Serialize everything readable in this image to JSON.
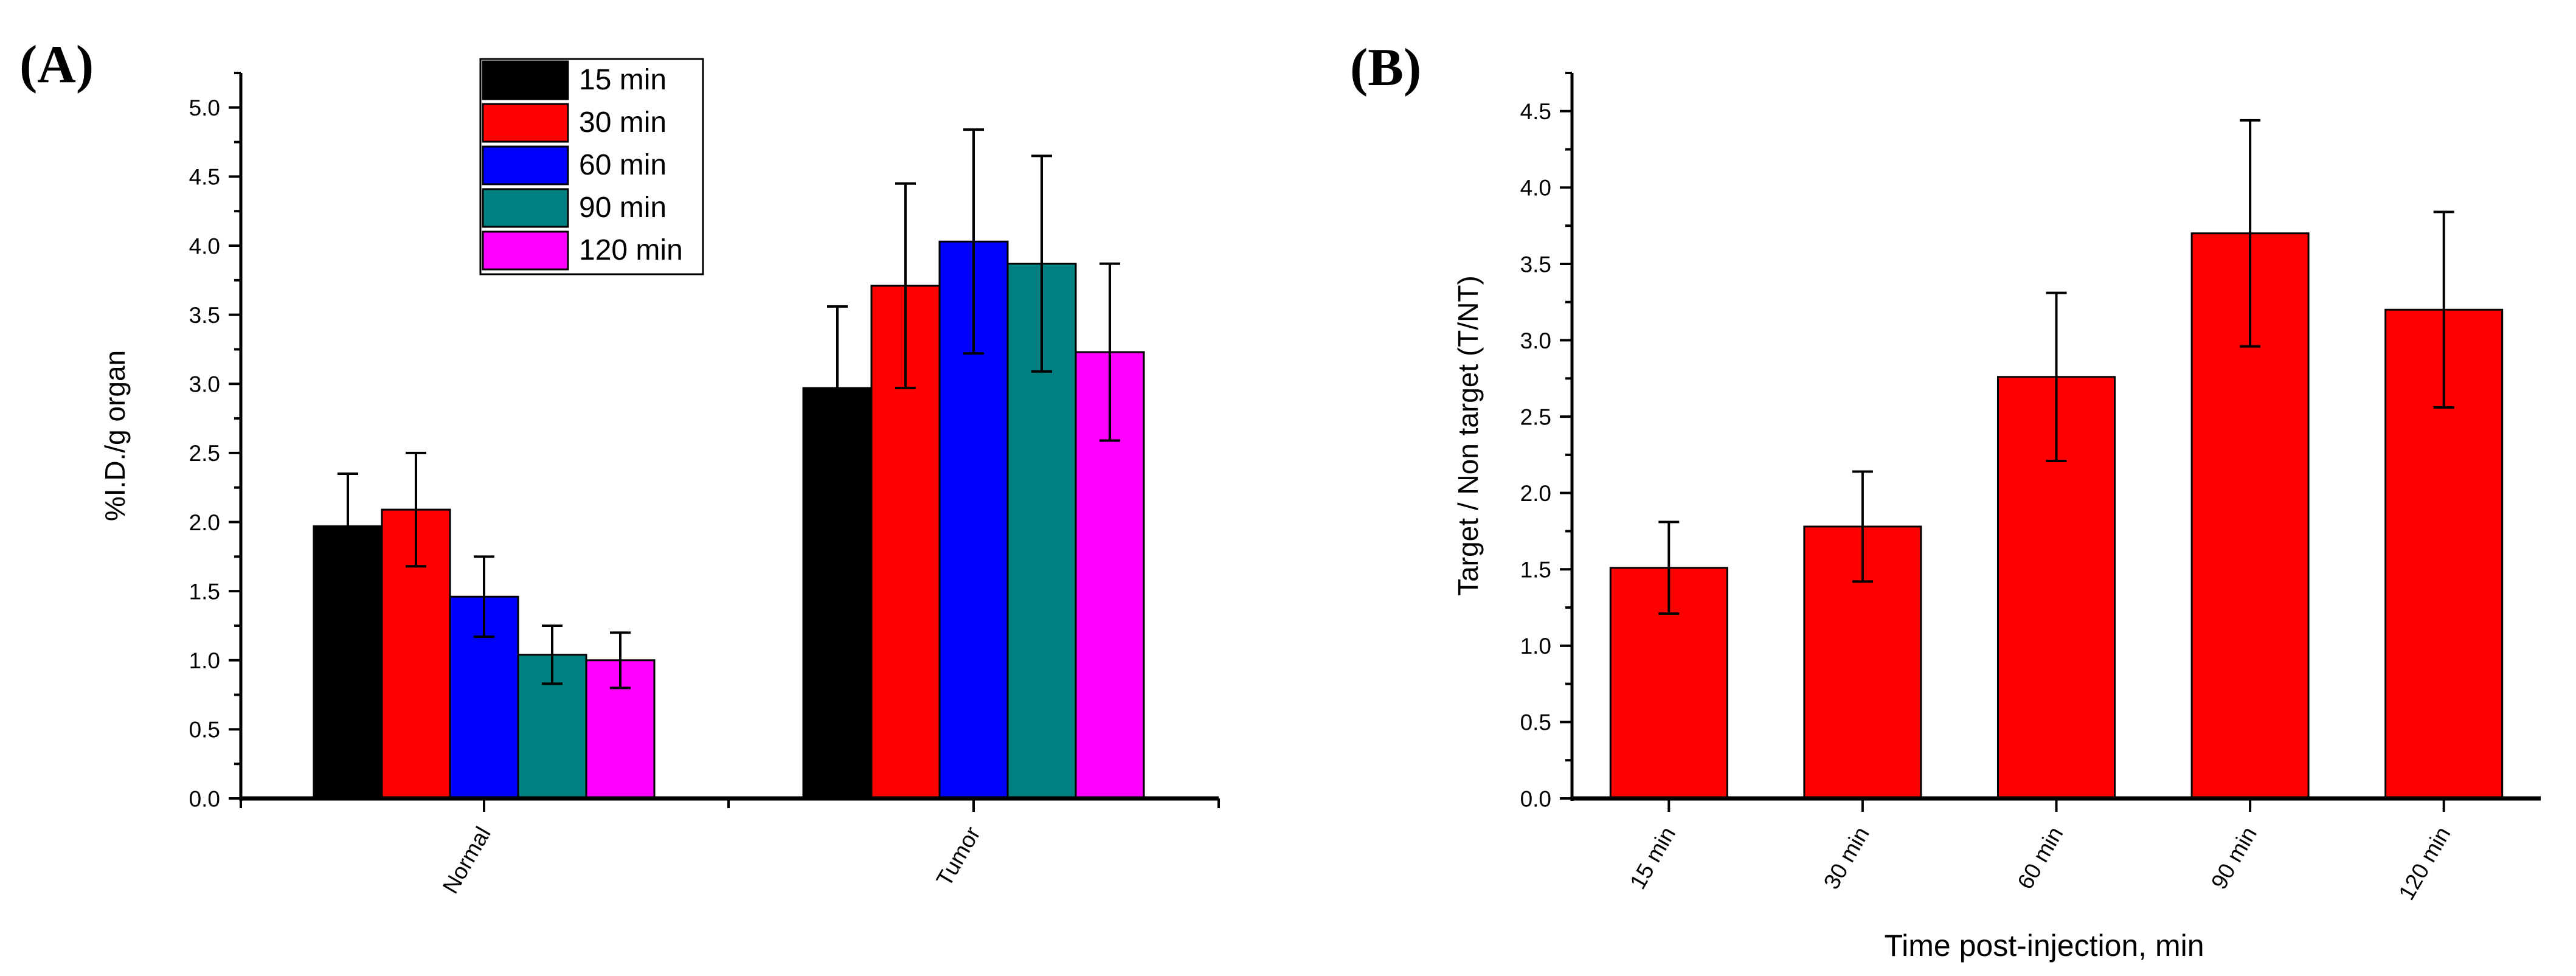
{
  "chart_data": [
    {
      "type": "bar",
      "panel_label": "(A)",
      "title": "",
      "xlabel": "",
      "ylabel": "%I.D./g organ",
      "ylim": [
        0,
        5.25
      ],
      "yticks": [
        "0.0",
        "0.5",
        "1.0",
        "1.5",
        "2.0",
        "2.5",
        "3.0",
        "3.5",
        "4.0",
        "4.5",
        "5.0"
      ],
      "categories": [
        "Normal",
        "Tumor"
      ],
      "legend_position": "top-center",
      "series": [
        {
          "name": "15 min",
          "color": "#000000",
          "values": [
            1.97,
            2.97
          ],
          "errors": [
            0.38,
            0.59
          ]
        },
        {
          "name": "30 min",
          "color": "#ff0000",
          "values": [
            2.09,
            3.71
          ],
          "errors": [
            0.41,
            0.74
          ]
        },
        {
          "name": "60 min",
          "color": "#0000ff",
          "values": [
            1.46,
            4.03
          ],
          "errors": [
            0.29,
            0.81
          ]
        },
        {
          "name": "90 min",
          "color": "#008080",
          "values": [
            1.04,
            3.87
          ],
          "errors": [
            0.21,
            0.78
          ]
        },
        {
          "name": "120 min",
          "color": "#ff00ff",
          "values": [
            1.0,
            3.23
          ],
          "errors": [
            0.2,
            0.64
          ]
        }
      ]
    },
    {
      "type": "bar",
      "panel_label": "(B)",
      "title": "",
      "xlabel": "Time post-injection, min",
      "ylabel": "Target / Non target (T/NT)",
      "ylim": [
        0,
        4.75
      ],
      "yticks": [
        "0.0",
        "0.5",
        "1.0",
        "1.5",
        "2.0",
        "2.5",
        "3.0",
        "3.5",
        "4.0",
        "4.5"
      ],
      "categories": [
        "15 min",
        "30 min",
        "60 min",
        "90 min",
        "120 min"
      ],
      "color": "#ff0000",
      "values": [
        1.51,
        1.78,
        2.76,
        3.7,
        3.2
      ],
      "errors": [
        0.3,
        0.36,
        0.55,
        0.74,
        0.64
      ]
    }
  ]
}
